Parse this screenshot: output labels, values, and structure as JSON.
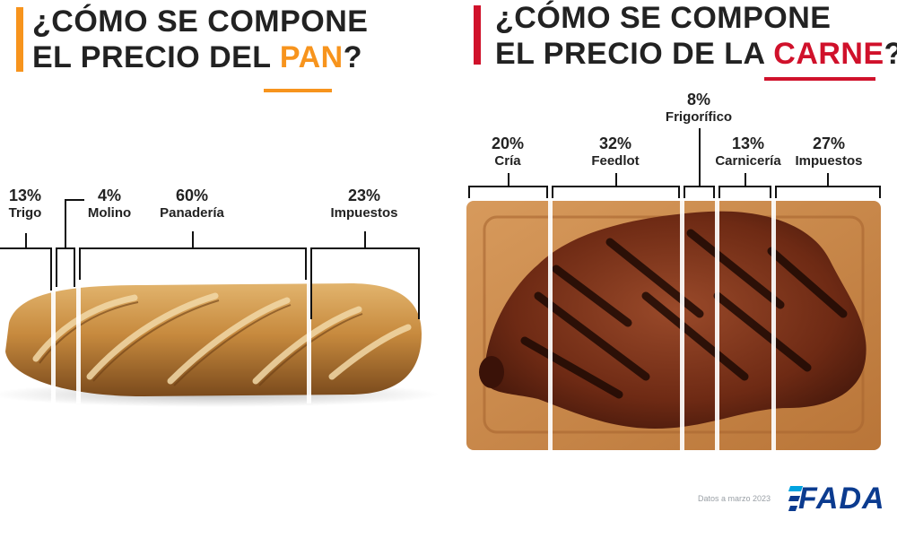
{
  "colors": {
    "bread_accent": "#f7941d",
    "meat_accent": "#d0112b",
    "fada_blue": "#0b3b8f",
    "fada_cyan": "#00a3e0"
  },
  "bread": {
    "title_line1": "¿CÓMO SE COMPONE",
    "title_line2_prefix": "EL PRECIO DEL ",
    "title_highlight": "PAN",
    "title_suffix": "?",
    "image_icon": "baguette-image"
  },
  "meat": {
    "title_line1": "¿CÓMO SE COMPONE",
    "title_line2_prefix": "EL PRECIO DE LA ",
    "title_highlight": "CARNE",
    "title_suffix": "?",
    "image_icon": "steak-on-board-image"
  },
  "chart_data": [
    {
      "type": "bar",
      "categories": [
        "Trigo",
        "Molino",
        "Panadería",
        "Impuestos"
      ],
      "values": [
        13,
        4,
        60,
        23
      ],
      "value_labels": [
        "13%",
        "4%",
        "60%",
        "23%"
      ],
      "title": "¿CÓMO SE COMPONE EL PRECIO DEL PAN?"
    },
    {
      "type": "bar",
      "categories": [
        "Cría",
        "Feedlot",
        "Frigorífico",
        "Carnicería",
        "Impuestos"
      ],
      "values": [
        20,
        32,
        8,
        13,
        27
      ],
      "value_labels": [
        "20%",
        "32%",
        "8%",
        "13%",
        "27%"
      ],
      "title": "¿CÓMO SE COMPONE EL PRECIO DE LA CARNE?"
    }
  ],
  "footer": {
    "note": "Datos a marzo 2023",
    "logo_text": "FADA"
  }
}
